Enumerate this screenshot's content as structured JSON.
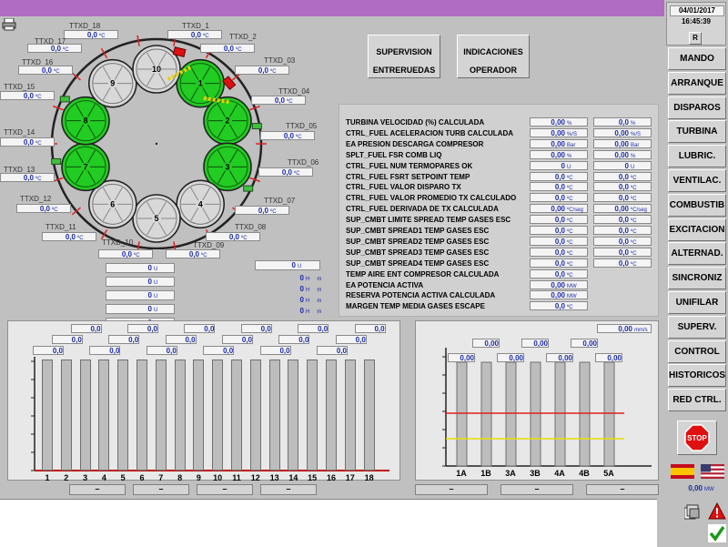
{
  "header": {
    "date": "04/01/2017",
    "time": "16:45:39",
    "r_button": "R"
  },
  "sidebar": {
    "items": [
      "MANDO",
      "ARRANQUE",
      "DISPAROS",
      "TURBINA",
      "LUBRIC.",
      "VENTILAC.",
      "COMBUSTIB",
      "EXCITACION",
      "ALTERNAD.",
      "SINCRONIZ",
      "UNIFILAR",
      "SUPERV.",
      "CONTROL",
      "HISTORICOS",
      "RED CTRL."
    ],
    "stop_label": "STOP",
    "power_value": "0,00",
    "power_unit": "MW"
  },
  "center_buttons": {
    "supervision": "SUPERVISION\nENTRERUEDAS",
    "indicaciones": "INDICACIONES\nOPERADOR"
  },
  "ttxd": [
    {
      "label": "TTXD_18",
      "value": "0,0",
      "unit": "ºC"
    },
    {
      "label": "TTXD_1",
      "value": "0,0",
      "unit": "ºC"
    },
    {
      "label": "TTXD_17",
      "value": "0,0",
      "unit": "ºC"
    },
    {
      "label": "TTXD_2",
      "value": "0,0",
      "unit": "ºC"
    },
    {
      "label": "TTXD_16",
      "value": "0,0",
      "unit": "ºC"
    },
    {
      "label": "TTXD_03",
      "value": "0,0",
      "unit": "ºC"
    },
    {
      "label": "TTXD_15",
      "value": "0,0",
      "unit": "ºC"
    },
    {
      "label": "TTXD_04",
      "value": "0,0",
      "unit": "ºC"
    },
    {
      "label": "TTXD_14",
      "value": "0,0",
      "unit": "ºC"
    },
    {
      "label": "TTXD_05",
      "value": "0,0",
      "unit": "ºC"
    },
    {
      "label": "TTXD_13",
      "value": "0,0",
      "unit": "ºC"
    },
    {
      "label": "TTXD_06",
      "value": "0,0",
      "unit": "ºC"
    },
    {
      "label": "TTXD_12",
      "value": "0,0",
      "unit": "ºC"
    },
    {
      "label": "TTXD_07",
      "value": "0,0",
      "unit": "ºC"
    },
    {
      "label": "TTXD_11",
      "value": "0,0",
      "unit": "ºC"
    },
    {
      "label": "TTXD_08",
      "value": "0,0",
      "unit": "ºC"
    },
    {
      "label": "TTXD_10",
      "value": "0,0",
      "unit": "ºC"
    },
    {
      "label": "TTXD_09",
      "value": "0,0",
      "unit": "ºC"
    }
  ],
  "combustors": [
    "1",
    "2",
    "3",
    "4",
    "5",
    "6",
    "7",
    "8",
    "9",
    "10"
  ],
  "combustor_status": {
    "green": [
      "1",
      "2",
      "3",
      "7",
      "8"
    ],
    "color_active": "#22cc22"
  },
  "misc_values": [
    {
      "value": "0",
      "unit": "U"
    },
    {
      "value": "0",
      "unit": "U"
    },
    {
      "value": "0",
      "unit": "U"
    },
    {
      "value": "0",
      "unit": "U"
    },
    {
      "value": "0",
      "unit": "U"
    }
  ],
  "misc_right": [
    {
      "value": "0",
      "unit": "H",
      "unit2": "m"
    },
    {
      "value": "0",
      "unit": "H",
      "unit2": "m"
    },
    {
      "value": "0",
      "unit": "H",
      "unit2": "m"
    },
    {
      "value": "0",
      "unit": "H",
      "unit2": "m"
    }
  ],
  "params": [
    {
      "label": "TURBINA VELOCIDAD (%) CALCULADA",
      "v1": "0,00",
      "u1": "%",
      "v2": "0,0",
      "u2": "%"
    },
    {
      "label": "CTRL_FUEL ACELERACION TURB CALCULADA",
      "v1": "0,00",
      "u1": "%/S",
      "v2": "0,00",
      "u2": "%/S"
    },
    {
      "label": "EA PRESION DESCARGA COMPRESOR",
      "v1": "0,00",
      "u1": "Bar",
      "v2": "0,00",
      "u2": "Bar"
    },
    {
      "label": "SPLT_FUEL FSR COMB LIQ",
      "v1": "0,00",
      "u1": "%",
      "v2": "0,00",
      "u2": "%"
    },
    {
      "label": "CTRL_FUEL NUM TERMOPARES OK",
      "v1": "0",
      "u1": "U",
      "v2": "0",
      "u2": "U"
    },
    {
      "label": "CTRL_FUEL FSRT SETPOINT TEMP",
      "v1": "0,0",
      "u1": "ºC",
      "v2": "0,0",
      "u2": "ºC"
    },
    {
      "label": "CTRL_FUEL VALOR DISPARO TX",
      "v1": "0,0",
      "u1": "ºC",
      "v2": "0,0",
      "u2": "ºC"
    },
    {
      "label": "CTRL_FUEL VALOR PROMEDIO TX CALCULADO",
      "v1": "0,0",
      "u1": "ºC",
      "v2": "0,0",
      "u2": "ºC"
    },
    {
      "label": "CTRL_FUEL DERIVADA DE TX CALCULADA",
      "v1": "0,00",
      "u1": "ºC/seg",
      "v2": "0,00",
      "u2": "ºC/seg"
    },
    {
      "label": "SUP_CMBT LIMITE SPREAD TEMP GASES ESC",
      "v1": "0,0",
      "u1": "ºC",
      "v2": "0,0",
      "u2": "ºC"
    },
    {
      "label": "SUP_CMBT SPREAD1 TEMP GASES ESC",
      "v1": "0,0",
      "u1": "ºC",
      "v2": "0,0",
      "u2": "ºC"
    },
    {
      "label": "SUP_CMBT SPREAD2 TEMP GASES ESC",
      "v1": "0,0",
      "u1": "ºC",
      "v2": "0,0",
      "u2": "ºC"
    },
    {
      "label": "SUP_CMBT SPREAD3 TEMP GASES ESC",
      "v1": "0,0",
      "u1": "ºC",
      "v2": "0,0",
      "u2": "ºC"
    },
    {
      "label": "SUP_CMBT SPREAD4 TEMP GASES ESC",
      "v1": "0,0",
      "u1": "ºC",
      "v2": "0,0",
      "u2": "ºC"
    },
    {
      "label": "TEMP AIRE ENT COMPRESOR CALCULADA",
      "v1": "0,0",
      "u1": "ºC",
      "v2": "",
      "u2": ""
    },
    {
      "label": "EA POTENCIA ACTIVA",
      "v1": "0,00",
      "u1": "MW",
      "v2": "",
      "u2": ""
    },
    {
      "label": "RESERVA POTENCIA ACTIVA CALCULADA",
      "v1": "0,00",
      "u1": "MW",
      "v2": "",
      "u2": ""
    },
    {
      "label": "MARGEN TEMP MEDIA GASES ESCAPE",
      "v1": "0,0",
      "u1": "ºC",
      "v2": "",
      "u2": ""
    }
  ],
  "left_chart": {
    "categories": [
      "1",
      "2",
      "3",
      "4",
      "5",
      "6",
      "7",
      "8",
      "9",
      "10",
      "11",
      "12",
      "13",
      "14",
      "15",
      "16",
      "17",
      "18"
    ],
    "values": [
      "0,0",
      "0,0",
      "0,0",
      "0,0",
      "0,0",
      "0,0",
      "0,0",
      "0,0",
      "0,0",
      "0,0",
      "0,0",
      "0,0",
      "0,0",
      "0,0",
      "0,0",
      "0,0",
      "0,0",
      "0,0"
    ],
    "dash_buttons": [
      "–",
      "–",
      "–",
      "–"
    ]
  },
  "right_chart": {
    "categories": [
      "1A",
      "1B",
      "3A",
      "3B",
      "4A",
      "4B",
      "5A"
    ],
    "values": [
      "0,00",
      "0,00",
      "0,00",
      "0,00",
      "0,00",
      "0,00",
      "0,00"
    ],
    "top_value": "0,00",
    "top_unit": "mm/s",
    "dash_buttons": [
      "–",
      "–",
      "–"
    ],
    "line_red": "#e02020",
    "line_yellow": "#e8e000"
  },
  "colors": {
    "topbar": "#b06cc0",
    "value_text": "#1a2aa6"
  }
}
